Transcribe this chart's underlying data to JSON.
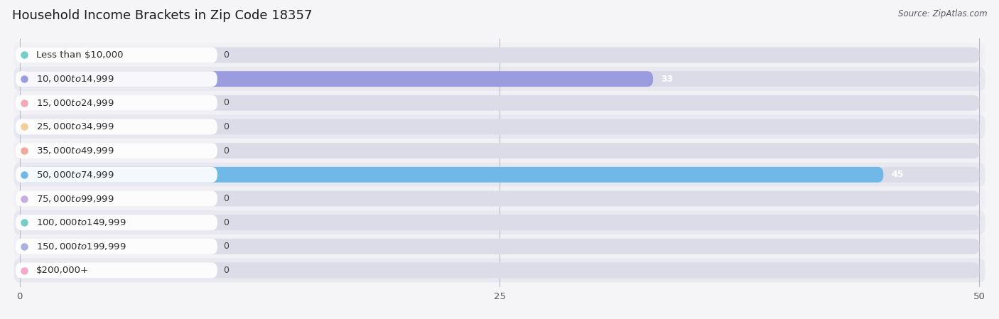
{
  "title": "Household Income Brackets in Zip Code 18357",
  "source": "Source: ZipAtlas.com",
  "categories": [
    "Less than $10,000",
    "$10,000 to $14,999",
    "$15,000 to $24,999",
    "$25,000 to $34,999",
    "$35,000 to $49,999",
    "$50,000 to $74,999",
    "$75,000 to $99,999",
    "$100,000 to $149,999",
    "$150,000 to $199,999",
    "$200,000+"
  ],
  "values": [
    0,
    33,
    0,
    0,
    0,
    45,
    0,
    0,
    0,
    0
  ],
  "bar_colors": [
    "#72cfc6",
    "#9b9be0",
    "#f5a8b8",
    "#f7cc98",
    "#f2a898",
    "#70b8e8",
    "#c8aee0",
    "#72cfc6",
    "#a8b0e0",
    "#f5a8c8"
  ],
  "row_bg_colors": [
    "#f0f0f5",
    "#e8e8f0",
    "#f0f0f5",
    "#e8e8f0",
    "#f0f0f5",
    "#e8e8f0",
    "#f0f0f5",
    "#e8e8f0",
    "#f0f0f5",
    "#e8e8f0"
  ],
  "xlim_max": 50,
  "xticks": [
    0,
    25,
    50
  ],
  "fig_bg": "#f5f5f8",
  "title_fontsize": 13,
  "label_fontsize": 9.5,
  "value_fontsize": 9,
  "source_fontsize": 8.5
}
